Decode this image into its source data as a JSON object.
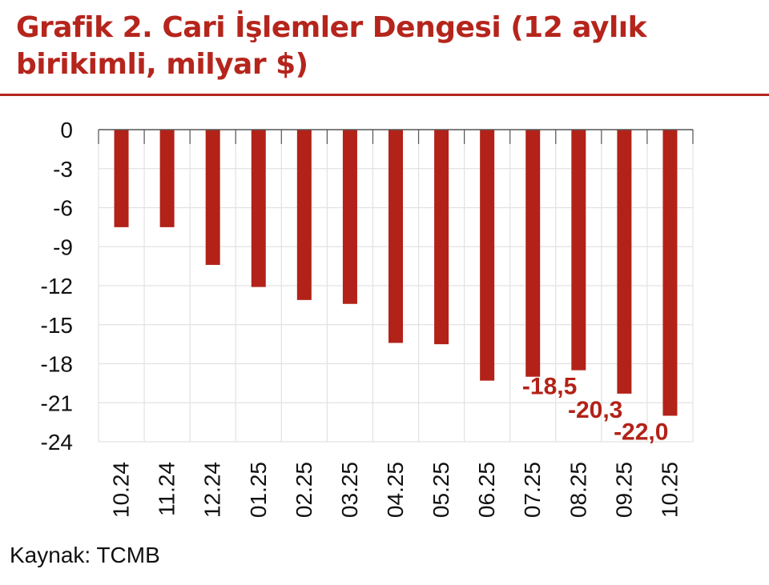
{
  "chart_data": {
    "type": "bar",
    "title": "Grafik 2. Cari İşlemler Dengesi (12 aylık birikimli, milyar $)",
    "categories": [
      "10.24",
      "11.24",
      "12.24",
      "01.25",
      "02.25",
      "03.25",
      "04.25",
      "05.25",
      "06.25",
      "07.25",
      "08.25",
      "09.25",
      "10.25"
    ],
    "values": [
      -7.5,
      -7.5,
      -10.4,
      -12.1,
      -13.1,
      -13.4,
      -16.4,
      -16.5,
      -19.3,
      -19.0,
      -18.5,
      -20.3,
      -22.0
    ],
    "data_labels": [
      null,
      null,
      null,
      null,
      null,
      null,
      null,
      null,
      null,
      null,
      "-18,5",
      "-20,3",
      "-22,0"
    ],
    "yticks": [
      "0",
      "-3",
      "-6",
      "-9",
      "-12",
      "-15",
      "-18",
      "-21",
      "-24"
    ],
    "ylim": [
      -24,
      0
    ],
    "xlabel": "",
    "ylabel": "",
    "grid": true,
    "bar_color": "#b22218",
    "title_color": "#b5251c"
  },
  "source": "Kaynak: TCMB"
}
